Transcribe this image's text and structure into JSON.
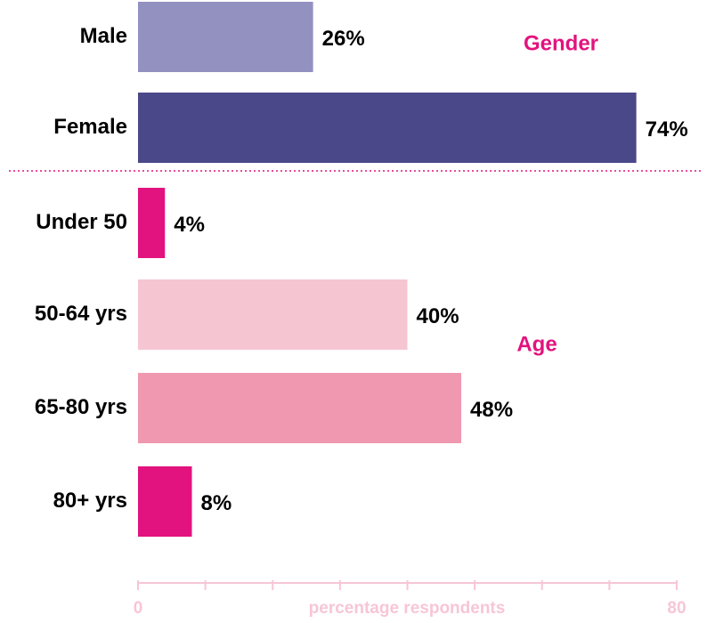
{
  "chart_data": {
    "type": "bar",
    "orientation": "horizontal",
    "xlabel": "percentage respondents",
    "xlim": [
      0,
      80
    ],
    "xticks": [
      0,
      {
        "value": 10,
        "label": null
      },
      {
        "value": 20,
        "label": null
      },
      {
        "value": 30,
        "label": null
      },
      {
        "value": 40,
        "label": null
      },
      {
        "value": 50,
        "label": null
      },
      {
        "value": 60,
        "label": null
      },
      {
        "value": 70,
        "label": null
      },
      80
    ],
    "groups": [
      {
        "label": "Gender",
        "categories": [
          "Male",
          "Female"
        ],
        "values": [
          26,
          74
        ],
        "value_labels": [
          "26%",
          "74%"
        ],
        "colors": [
          "#9391c0",
          "#4b4889"
        ]
      },
      {
        "label": "Age",
        "categories": [
          "Under 50",
          "50-64 yrs",
          "65-80 yrs",
          "80+ yrs"
        ],
        "values": [
          4,
          40,
          48,
          8
        ],
        "value_labels": [
          "4%",
          "40%",
          "48%",
          "8%"
        ],
        "colors": [
          "#e2137e",
          "#f5c6d2",
          "#ef98b0",
          "#e2137e"
        ]
      }
    ]
  }
}
